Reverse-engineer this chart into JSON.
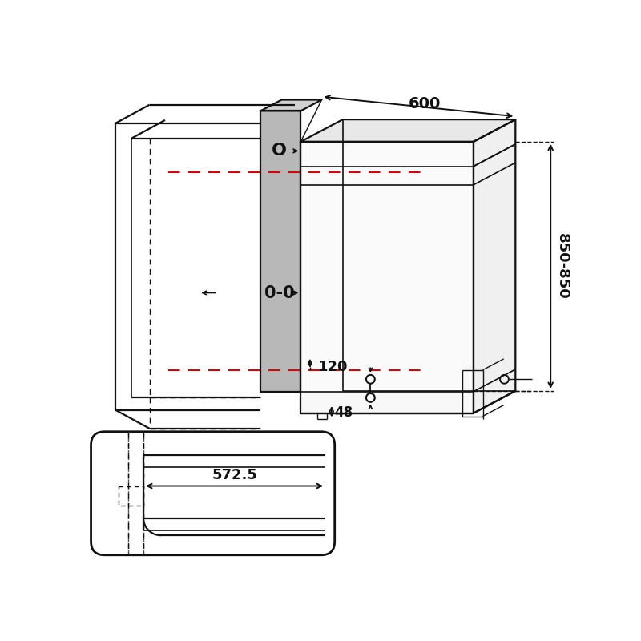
{
  "bg_color": "#ffffff",
  "line_color": "#111111",
  "red_color": "#dd0000",
  "gray_panel_color": "#b8b8b8",
  "gray_panel_light": "#d0d0d0",
  "dw_top_color": "#e8e8e8",
  "dw_side_color": "#f0f0f0",
  "dw_front_color": "#fafafa",
  "dim_600": "600",
  "dim_850_850": "850-850",
  "dim_120": "120",
  "dim_48": "48",
  "dim_572_5": "572.5",
  "label_O": "O",
  "label_0_0": "0-0"
}
